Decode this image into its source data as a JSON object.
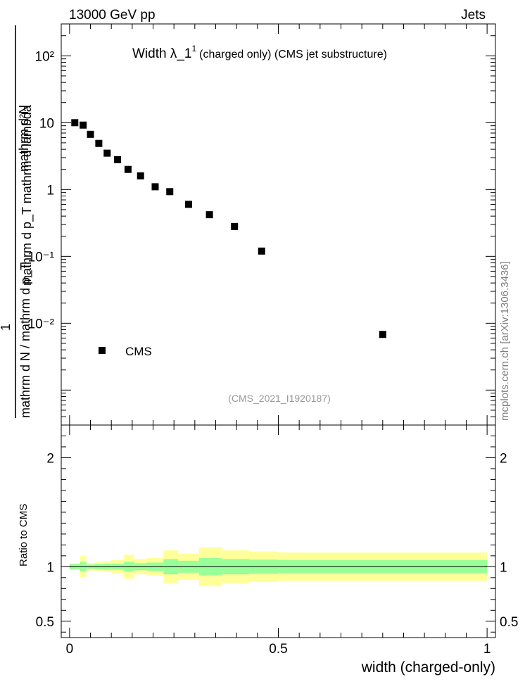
{
  "header": {
    "left": "13000 GeV pp",
    "right": "Jets"
  },
  "plot_title": {
    "main": "Width λ_1",
    "sup": "1",
    "rest": "(charged only) (CMS jet substructure)"
  },
  "analysis_id": "(CMS_2021_I1920187)",
  "side_label": "mcplots.cern.ch [arXiv:1306.3436]",
  "chart_data": [
    {
      "type": "scatter",
      "xlim": [
        -0.02,
        1.02
      ],
      "ylim": [
        0.0003,
        300
      ],
      "yscale": "log",
      "ylabel": {
        "top": "mathrm d²N",
        "sub": "mathrm d p_T mathrm d lambda",
        "left_num": "1",
        "left_den": "mathrm d N / mathrm d p_T"
      },
      "ytick_labels": [
        "10⁻²",
        "10⁻¹",
        "1",
        "10",
        "10²"
      ],
      "ytick_values": [
        0.01,
        0.1,
        1,
        10,
        100
      ],
      "legend": {
        "label": "CMS",
        "position": "lower-left"
      },
      "series": [
        {
          "name": "CMS",
          "color": "#000000",
          "x": [
            0.0125,
            0.0325,
            0.05,
            0.07,
            0.09,
            0.115,
            0.14,
            0.17,
            0.205,
            0.24,
            0.285,
            0.335,
            0.395,
            0.46,
            0.75
          ],
          "y": [
            10.0,
            9.2,
            6.7,
            4.9,
            3.5,
            2.8,
            2.0,
            1.6,
            1.1,
            0.93,
            0.6,
            0.42,
            0.28,
            0.12,
            0.0068
          ]
        }
      ]
    },
    {
      "type": "area",
      "xlim": [
        -0.02,
        1.02
      ],
      "ylim": [
        0.35,
        2.3
      ],
      "ylabel": "Ratio to CMS",
      "xlabel": "width (charged-only)",
      "xtick_labels": [
        "0",
        "0.5",
        "1"
      ],
      "xtick_values": [
        0,
        0.5,
        1
      ],
      "ytick_labels": [
        "0.5",
        "1",
        "2"
      ],
      "ytick_values": [
        0.5,
        1,
        2
      ],
      "bin_edges": [
        0,
        0.025,
        0.04,
        0.06,
        0.08,
        0.1,
        0.13,
        0.155,
        0.185,
        0.225,
        0.26,
        0.31,
        0.365,
        0.43,
        0.5,
        1.0
      ],
      "bands": [
        {
          "name": "stat",
          "color": "#99ff99",
          "lo": [
            0.975,
            0.955,
            0.98,
            0.975,
            0.972,
            0.972,
            0.955,
            0.968,
            0.962,
            0.93,
            0.945,
            0.92,
            0.93,
            0.935,
            0.94
          ],
          "hi": [
            1.025,
            1.045,
            1.02,
            1.025,
            1.028,
            1.028,
            1.045,
            1.032,
            1.038,
            1.07,
            1.055,
            1.08,
            1.07,
            1.065,
            1.06
          ]
        },
        {
          "name": "total",
          "color": "#ffff99",
          "lo": [
            0.97,
            0.9,
            0.965,
            0.96,
            0.95,
            0.94,
            0.89,
            0.93,
            0.92,
            0.85,
            0.88,
            0.82,
            0.85,
            0.86,
            0.87
          ],
          "hi": [
            1.03,
            1.1,
            1.035,
            1.04,
            1.05,
            1.06,
            1.11,
            1.07,
            1.08,
            1.15,
            1.12,
            1.18,
            1.15,
            1.14,
            1.13
          ]
        }
      ],
      "reference_line": 1.0
    }
  ]
}
